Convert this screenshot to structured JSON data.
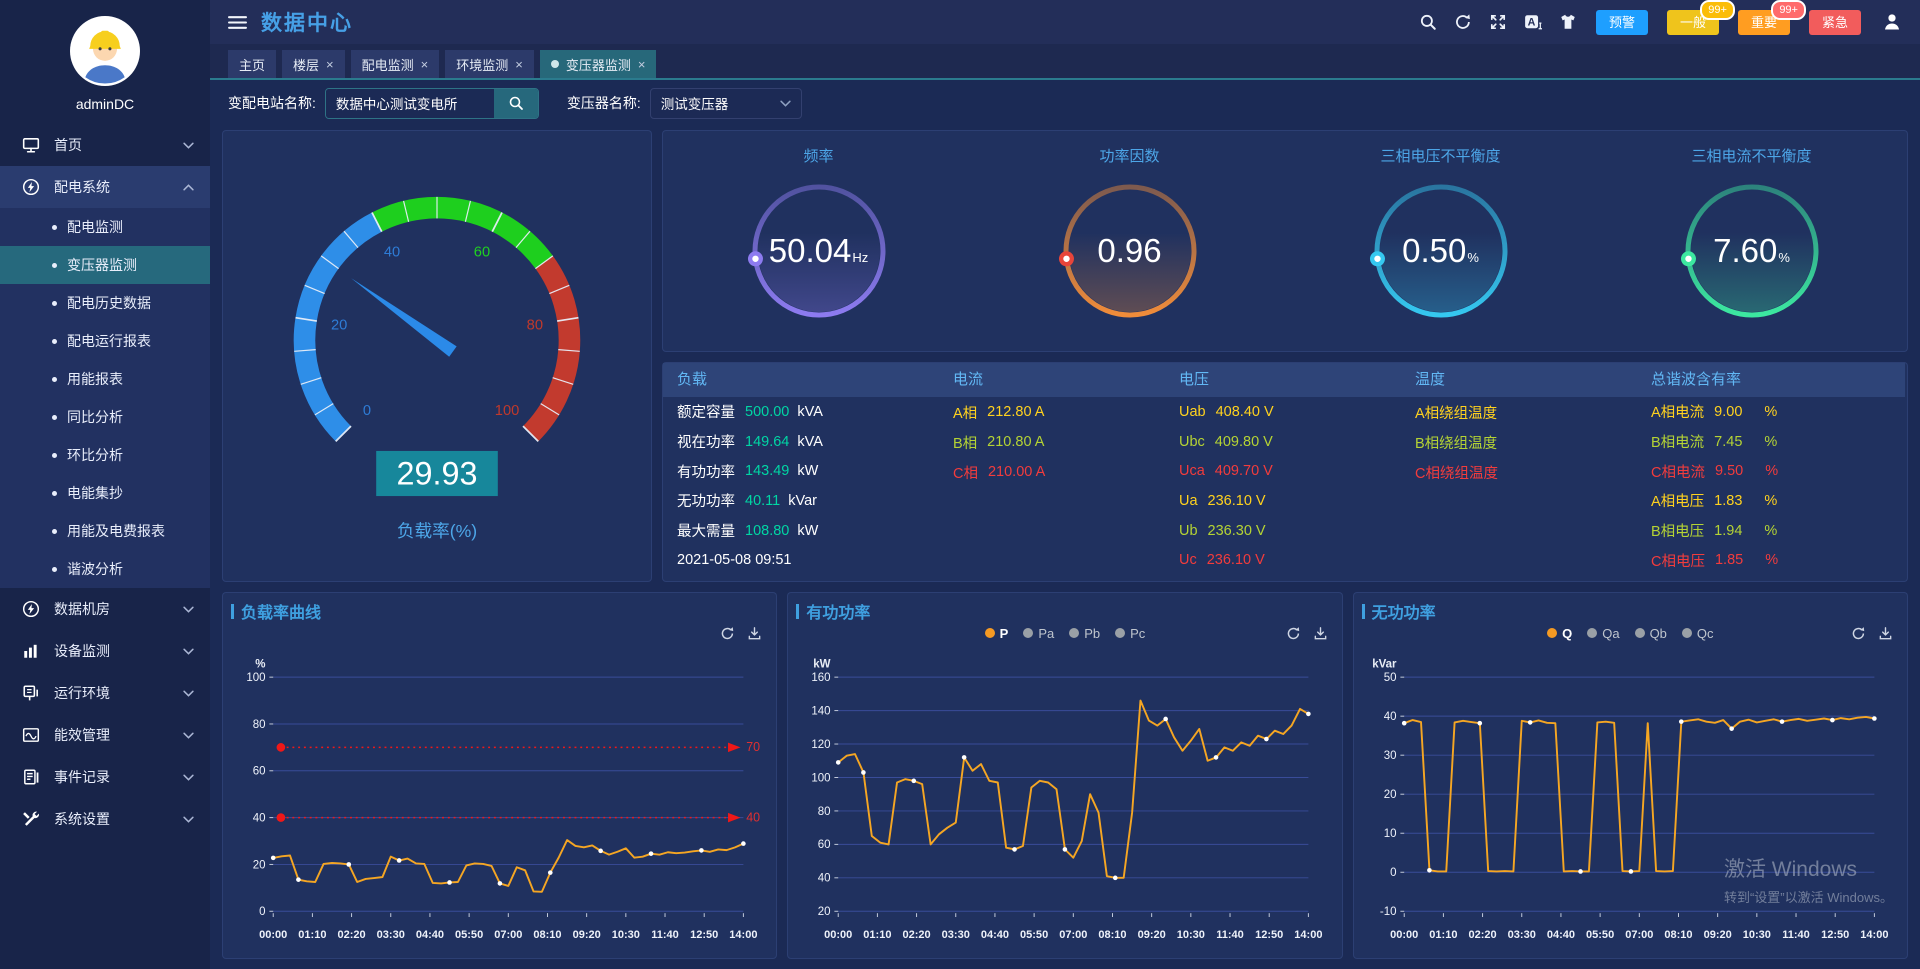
{
  "app": {
    "title": "数据中心"
  },
  "topbar": {
    "tools": [
      "search",
      "refresh",
      "fullscreen",
      "translate",
      "theme"
    ],
    "alarms": [
      {
        "label": "预警",
        "color": "#1e9fff",
        "badge": ""
      },
      {
        "label": "一般",
        "color": "#efc41c",
        "badge": "99+",
        "badge_color": "#fbbd08"
      },
      {
        "label": "重要",
        "color": "#ff9d21",
        "badge": "99+",
        "badge_color": "#ff6b6b"
      },
      {
        "label": "紧急",
        "color": "#f25c5c",
        "badge": ""
      }
    ]
  },
  "tabs": [
    {
      "label": "主页",
      "closable": false,
      "active": false
    },
    {
      "label": "楼层",
      "closable": true,
      "active": false
    },
    {
      "label": "配电监测",
      "closable": true,
      "active": false
    },
    {
      "label": "环境监测",
      "closable": true,
      "active": false
    },
    {
      "label": "变压器监测",
      "closable": true,
      "active": true
    }
  ],
  "filters": {
    "station_label": "变配电站名称:",
    "station_value": "数据中心测试变电所",
    "transformer_label": "变压器名称:",
    "transformer_value": "测试变压器"
  },
  "sidebar": {
    "user": "adminDC",
    "items": [
      {
        "label": "首页",
        "icon": "monitor",
        "expanded": false,
        "active": false,
        "children": []
      },
      {
        "label": "配电系统",
        "icon": "power",
        "expanded": true,
        "active": true,
        "children": [
          {
            "label": "配电监测",
            "active": false
          },
          {
            "label": "变压器监测",
            "active": true
          },
          {
            "label": "配电历史数据",
            "active": false
          },
          {
            "label": "配电运行报表",
            "active": false
          },
          {
            "label": "用能报表",
            "active": false
          },
          {
            "label": "同比分析",
            "active": false
          },
          {
            "label": "环比分析",
            "active": false
          },
          {
            "label": "电能集抄",
            "active": false
          },
          {
            "label": "用能及电费报表",
            "active": false
          },
          {
            "label": "谐波分析",
            "active": false
          }
        ]
      },
      {
        "label": "数据机房",
        "icon": "power",
        "expanded": false,
        "active": false,
        "children": []
      },
      {
        "label": "设备监测",
        "icon": "chart-bars",
        "expanded": false,
        "active": false,
        "children": []
      },
      {
        "label": "运行环境",
        "icon": "device",
        "expanded": false,
        "active": false,
        "children": []
      },
      {
        "label": "能效管理",
        "icon": "energy",
        "expanded": false,
        "active": false,
        "children": []
      },
      {
        "label": "事件记录",
        "icon": "events",
        "expanded": false,
        "active": false,
        "children": []
      },
      {
        "label": "系统设置",
        "icon": "tools",
        "expanded": false,
        "active": false,
        "children": []
      }
    ]
  },
  "gauge": {
    "value": "29.93",
    "caption": "负载率(%)",
    "min": 0,
    "max": 100,
    "fraction": 0.2993,
    "segments": [
      {
        "to": 40,
        "color": "#2e8ee8"
      },
      {
        "to": 70,
        "color": "#1ecf1e"
      },
      {
        "to": 100,
        "color": "#c23a2e"
      }
    ],
    "tick_labels": [
      "0",
      "20",
      "40",
      "60",
      "80",
      "100"
    ],
    "tick_colors": [
      "#2e7cd6",
      "#2e7cd6",
      "#2e7cd6",
      "#1fd21f",
      "#c0392b",
      "#c0392b"
    ],
    "needle_color": "#2b8ae8",
    "value_bg": "#17879b"
  },
  "kpis": [
    {
      "title": "频率",
      "value": "50.04",
      "unit": "Hz",
      "color": "#8d7bf0",
      "dot_color": "#8d7bf0"
    },
    {
      "title": "功率因数",
      "value": "0.96",
      "unit": "",
      "color": "#f08c3a",
      "dot_color": "#e8453a"
    },
    {
      "title": "三相电压不平衡度",
      "value": "0.50",
      "unit": "%",
      "color": "#35c8f0",
      "dot_color": "#35c8f0"
    },
    {
      "title": "三相电流不平衡度",
      "value": "7.60",
      "unit": "%",
      "color": "#3ce8a0",
      "dot_color": "#3ce8a0"
    }
  ],
  "table": {
    "value_colors": {
      "y": "#ffd21e",
      "g": "#b5d334",
      "r": "#f23c3c",
      "green": "#00d6a4"
    },
    "columns": [
      {
        "kind": "load",
        "header": "负载",
        "rows": [
          [
            "额定容量",
            "500.00",
            "kVA"
          ],
          [
            "视在功率",
            "149.64",
            "kVA"
          ],
          [
            "有功功率",
            "143.49",
            "kW"
          ],
          [
            "无功功率",
            "40.11",
            "kVar"
          ],
          [
            "最大需量",
            "108.80",
            "kW"
          ],
          [
            "2021-05-08 09:51",
            "",
            ""
          ]
        ]
      },
      {
        "kind": "phase",
        "header": "电流",
        "rows": [
          [
            "A相",
            "212.80 A",
            "y"
          ],
          [
            "B相",
            "210.80 A",
            "g"
          ],
          [
            "C相",
            "210.00 A",
            "r"
          ]
        ]
      },
      {
        "kind": "phase",
        "header": "电压",
        "rows": [
          [
            "Uab",
            "408.40 V",
            "y"
          ],
          [
            "Ubc",
            "409.80 V",
            "g"
          ],
          [
            "Uca",
            "409.70 V",
            "r"
          ],
          [
            "Ua",
            "236.10 V",
            "y"
          ],
          [
            "Ub",
            "236.30 V",
            "g"
          ],
          [
            "Uc",
            "236.10 V",
            "r"
          ]
        ]
      },
      {
        "kind": "phase",
        "header": "温度",
        "rows": [
          [
            "A相绕组温度",
            "",
            "y"
          ],
          [
            "B相绕组温度",
            "",
            "g"
          ],
          [
            "C相绕组温度",
            "",
            "r"
          ]
        ]
      },
      {
        "kind": "thd",
        "header": "总谐波含有率",
        "rows": [
          [
            "A相电流",
            "9.00",
            "y"
          ],
          [
            "B相电流",
            "7.45",
            "g"
          ],
          [
            "C相电流",
            "9.50",
            "r"
          ],
          [
            "A相电压",
            "1.83",
            "y"
          ],
          [
            "B相电压",
            "1.94",
            "g"
          ],
          [
            "C相电压",
            "1.85",
            "r"
          ]
        ]
      }
    ]
  },
  "chart_data": [
    {
      "type": "line",
      "key": "load-rate",
      "title": "负载率曲线",
      "unit": "%",
      "ymin": 0,
      "ymax": 100,
      "yticks": [
        100,
        80,
        60,
        40,
        20,
        0
      ],
      "x_ticks": [
        "00:00",
        "01:10",
        "02:20",
        "03:30",
        "04:40",
        "05:50",
        "07:00",
        "08:10",
        "09:20",
        "10:30",
        "11:40",
        "12:50",
        "14:00"
      ],
      "legend": [],
      "marklines": [
        {
          "value": 70,
          "label": "70"
        },
        {
          "value": 40,
          "label": "40"
        }
      ],
      "series": [
        {
          "name": "负载率",
          "color": "#f5a623",
          "values": [
            22.8,
            23.5,
            23.8,
            13.5,
            12.8,
            12.5,
            20.2,
            20.6,
            20.4,
            20.0,
            12.5,
            13.8,
            14.2,
            14.6,
            23.3,
            21.7,
            22.5,
            20.4,
            20.2,
            12.1,
            11.9,
            12.3,
            12.5,
            19.6,
            20.4,
            20.2,
            19.4,
            11.9,
            10.8,
            18.8,
            17.5,
            8.5,
            8.3,
            16.5,
            22.9,
            30.4,
            27.9,
            27.3,
            28.1,
            25.8,
            24.2,
            25.4,
            26.9,
            22.9,
            23.3,
            24.6,
            24.2,
            25.2,
            24.8,
            25.1,
            25.6,
            26.0,
            25.4,
            26.4,
            26.1,
            27.3,
            28.9
          ]
        }
      ]
    },
    {
      "type": "line",
      "key": "active-power",
      "title": "有功功率",
      "unit": "kW",
      "ymin": 20,
      "ymax": 160,
      "yticks": [
        160,
        140,
        120,
        100,
        80,
        60,
        40,
        20
      ],
      "x_ticks": [
        "00:00",
        "01:10",
        "02:20",
        "03:30",
        "04:40",
        "05:50",
        "07:00",
        "08:10",
        "09:20",
        "10:30",
        "11:40",
        "12:50",
        "14:00"
      ],
      "legend": [
        {
          "label": "P",
          "active": true
        },
        {
          "label": "Pa",
          "active": false
        },
        {
          "label": "Pb",
          "active": false
        },
        {
          "label": "Pc",
          "active": false
        }
      ],
      "marklines": [],
      "series": [
        {
          "name": "P",
          "color": "#f5a623",
          "values": [
            109,
            113,
            114,
            103,
            65,
            61,
            60,
            97,
            99,
            98,
            96,
            60,
            66,
            70,
            73,
            112,
            104,
            108,
            98,
            97,
            58,
            57,
            59,
            94,
            98,
            97,
            93,
            57,
            52,
            62,
            90,
            79,
            41,
            40,
            40,
            79,
            146,
            134,
            131,
            135,
            124,
            116,
            122,
            129,
            110,
            112,
            118,
            116,
            121,
            119,
            125,
            123,
            128,
            126,
            131,
            141,
            138
          ]
        }
      ]
    },
    {
      "type": "line",
      "key": "reactive-power",
      "title": "无功功率",
      "unit": "kVar",
      "ymin": -10,
      "ymax": 50,
      "yticks": [
        50,
        40,
        30,
        20,
        10,
        0,
        -10
      ],
      "x_ticks": [
        "00:00",
        "01:10",
        "02:20",
        "03:30",
        "04:40",
        "05:50",
        "07:00",
        "08:10",
        "09:20",
        "10:30",
        "11:40",
        "12:50",
        "14:00"
      ],
      "legend": [
        {
          "label": "Q",
          "active": true
        },
        {
          "label": "Qa",
          "active": false
        },
        {
          "label": "Qb",
          "active": false
        },
        {
          "label": "Qc",
          "active": false
        }
      ],
      "marklines": [],
      "series": [
        {
          "name": "Q",
          "color": "#f5a623",
          "values": [
            38.2,
            39.0,
            38.5,
            0.5,
            0.2,
            0.2,
            38.4,
            38.8,
            38.5,
            38.2,
            0.3,
            0.2,
            0.3,
            0.2,
            38.8,
            38.4,
            38.9,
            38.3,
            38.2,
            0.2,
            0.3,
            0.2,
            0.2,
            38.4,
            38.6,
            38.3,
            0.3,
            0.2,
            0.3,
            38.2,
            0.3,
            0.2,
            0.3,
            38.6,
            38.9,
            39.2,
            38.6,
            38.3,
            39.0,
            36.8,
            38.6,
            39.1,
            38.4,
            38.8,
            39.2,
            38.6,
            39.0,
            39.3,
            38.8,
            39.1,
            39.4,
            39.0,
            39.5,
            39.2,
            39.6,
            39.8,
            39.4
          ]
        }
      ]
    }
  ],
  "watermark": {
    "line1": "激活 Windows",
    "line2": "转到“设置”以激活 Windows。"
  }
}
